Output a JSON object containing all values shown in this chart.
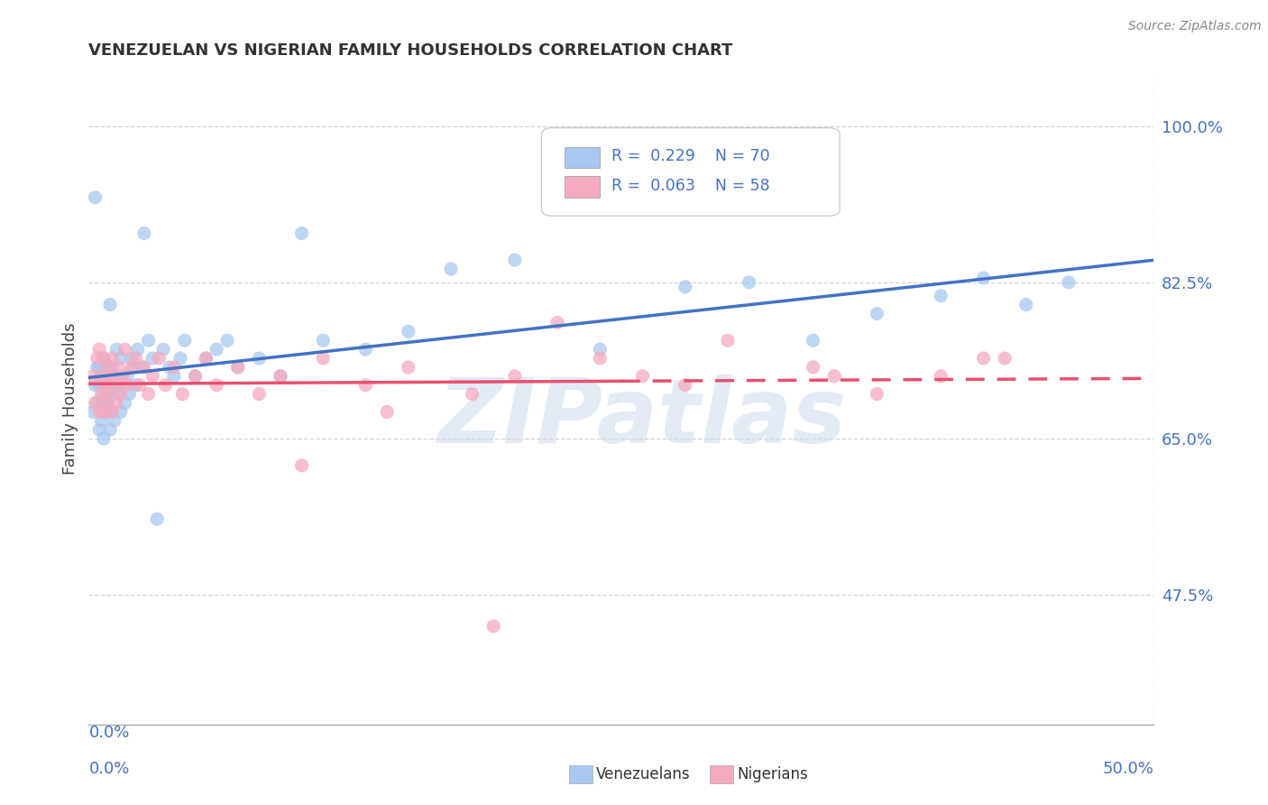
{
  "title": "VENEZUELAN VS NIGERIAN FAMILY HOUSEHOLDS CORRELATION CHART",
  "source": "Source: ZipAtlas.com",
  "ylabel": "Family Households",
  "yticks": [
    0.475,
    0.65,
    0.825,
    1.0
  ],
  "ytick_labels": [
    "47.5%",
    "65.0%",
    "82.5%",
    "100.0%"
  ],
  "xlim": [
    0.0,
    0.5
  ],
  "ylim": [
    0.33,
    1.06
  ],
  "watermark": "ZIPatlas",
  "venezuelan_color": "#a8c8f0",
  "nigerian_color": "#f5aabf",
  "venezuelan_line_color": "#4472c4",
  "nigerian_line_color": "#e85070",
  "background_color": "#ffffff",
  "grid_color": "#cccccc",
  "title_color": "#333333",
  "axis_label_color": "#4472c4",
  "legend_r1": "R = 0.229   N = 70",
  "legend_r2": "R = 0.063   N = 58",
  "ven_x": [
    0.002,
    0.003,
    0.003,
    0.004,
    0.004,
    0.005,
    0.005,
    0.005,
    0.006,
    0.006,
    0.006,
    0.007,
    0.007,
    0.007,
    0.008,
    0.008,
    0.009,
    0.009,
    0.01,
    0.01,
    0.01,
    0.011,
    0.011,
    0.012,
    0.012,
    0.013,
    0.013,
    0.014,
    0.015,
    0.015,
    0.016,
    0.017,
    0.018,
    0.019,
    0.02,
    0.021,
    0.022,
    0.023,
    0.025,
    0.026,
    0.028,
    0.03,
    0.032,
    0.035,
    0.038,
    0.04,
    0.043,
    0.045,
    0.05,
    0.055,
    0.06,
    0.065,
    0.07,
    0.08,
    0.09,
    0.1,
    0.11,
    0.13,
    0.15,
    0.17,
    0.2,
    0.24,
    0.28,
    0.31,
    0.34,
    0.37,
    0.4,
    0.42,
    0.44,
    0.46
  ],
  "ven_y": [
    0.68,
    0.92,
    0.71,
    0.69,
    0.73,
    0.66,
    0.71,
    0.73,
    0.67,
    0.69,
    0.72,
    0.65,
    0.7,
    0.74,
    0.68,
    0.71,
    0.69,
    0.73,
    0.66,
    0.7,
    0.8,
    0.68,
    0.73,
    0.67,
    0.72,
    0.71,
    0.75,
    0.7,
    0.68,
    0.74,
    0.71,
    0.69,
    0.72,
    0.7,
    0.74,
    0.73,
    0.71,
    0.75,
    0.73,
    0.88,
    0.76,
    0.74,
    0.56,
    0.75,
    0.73,
    0.72,
    0.74,
    0.76,
    0.72,
    0.74,
    0.75,
    0.76,
    0.73,
    0.74,
    0.72,
    0.88,
    0.76,
    0.75,
    0.77,
    0.84,
    0.85,
    0.75,
    0.82,
    0.825,
    0.76,
    0.79,
    0.81,
    0.83,
    0.8,
    0.825
  ],
  "nig_x": [
    0.002,
    0.003,
    0.004,
    0.005,
    0.005,
    0.006,
    0.006,
    0.007,
    0.007,
    0.008,
    0.008,
    0.009,
    0.009,
    0.01,
    0.011,
    0.011,
    0.012,
    0.013,
    0.014,
    0.015,
    0.016,
    0.017,
    0.018,
    0.02,
    0.022,
    0.024,
    0.026,
    0.028,
    0.03,
    0.033,
    0.036,
    0.04,
    0.044,
    0.05,
    0.055,
    0.06,
    0.07,
    0.08,
    0.09,
    0.11,
    0.13,
    0.15,
    0.18,
    0.2,
    0.24,
    0.28,
    0.34,
    0.37,
    0.4,
    0.42,
    0.1,
    0.14,
    0.19,
    0.22,
    0.26,
    0.3,
    0.35,
    0.43
  ],
  "nig_y": [
    0.72,
    0.69,
    0.74,
    0.68,
    0.75,
    0.7,
    0.72,
    0.68,
    0.74,
    0.71,
    0.69,
    0.73,
    0.7,
    0.72,
    0.68,
    0.74,
    0.71,
    0.69,
    0.73,
    0.7,
    0.72,
    0.75,
    0.71,
    0.73,
    0.74,
    0.71,
    0.73,
    0.7,
    0.72,
    0.74,
    0.71,
    0.73,
    0.7,
    0.72,
    0.74,
    0.71,
    0.73,
    0.7,
    0.72,
    0.74,
    0.71,
    0.73,
    0.7,
    0.72,
    0.74,
    0.71,
    0.73,
    0.7,
    0.72,
    0.74,
    0.62,
    0.68,
    0.44,
    0.78,
    0.72,
    0.76,
    0.72,
    0.74
  ]
}
